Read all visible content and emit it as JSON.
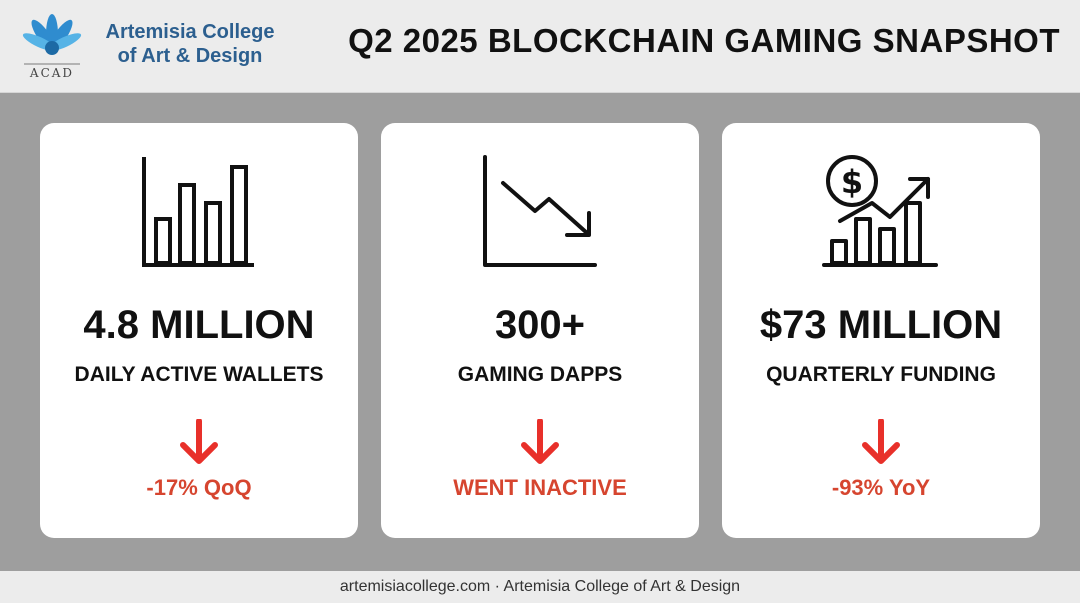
{
  "colors": {
    "accent_red": "#d6452f",
    "arrow_red": "#e8302a",
    "brand_blue": "#2c5f8f"
  },
  "header": {
    "logo_icon": "flower-logo-icon",
    "logo_abbrev": "ACAD",
    "college_name_line1": "Artemisia College",
    "college_name_line2": "of Art & Design",
    "title": "Q2 2025 BLOCKCHAIN GAMING SNAPSHOT"
  },
  "cards": [
    {
      "icon": "bar-chart-icon",
      "value": "4.8 MILLION",
      "label": "DAILY ACTIVE WALLETS",
      "change_icon": "down-arrow-icon",
      "change": "-17% QoQ"
    },
    {
      "icon": "declining-line-chart-icon",
      "value": "300+",
      "label": "GAMING DAPPS",
      "change_icon": "down-arrow-icon",
      "change": "WENT INACTIVE"
    },
    {
      "icon": "funding-growth-icon",
      "value": "$73 MILLION",
      "label": "QUARTERLY FUNDING",
      "change_icon": "down-arrow-icon",
      "change": "-93% YoY"
    }
  ],
  "footer": {
    "text": "artemisiacollege.com · Artemisia College of Art & Design"
  }
}
